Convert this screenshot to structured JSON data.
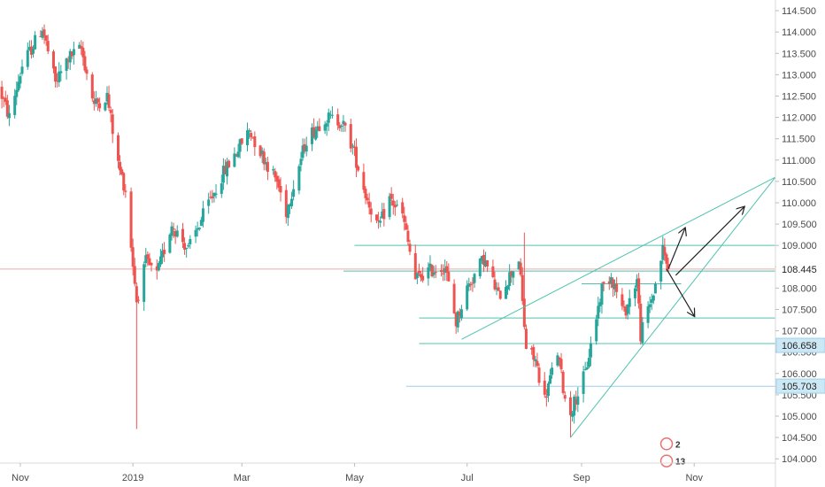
{
  "chart_data": {
    "type": "candlestick",
    "symbol": "",
    "title": "",
    "xlabel": "",
    "ylabel": "",
    "ylim": [
      103.9,
      114.75
    ],
    "grid": false,
    "x_ticks": [
      "Nov",
      "2019",
      "Mar",
      "May",
      "Jul",
      "Sep",
      "Nov"
    ],
    "x_tick_dates": [
      "2018-11-01",
      "2019-01-01",
      "2019-03-01",
      "2019-05-01",
      "2019-07-01",
      "2019-09-01",
      "2019-11-01"
    ],
    "x_range": [
      "2018-10-21",
      "2019-12-15"
    ],
    "y_ticks": [
      114.5,
      114.0,
      113.5,
      113.0,
      112.5,
      112.0,
      111.5,
      111.0,
      110.5,
      110.0,
      109.5,
      109.0,
      108.5,
      108.0,
      107.5,
      107.0,
      106.5,
      106.0,
      105.5,
      105.0,
      104.5,
      104.0
    ],
    "y_tick_labels": [
      "114.500",
      "114.000",
      "113.500",
      "113.000",
      "112.500",
      "112.000",
      "111.500",
      "111.000",
      "110.500",
      "110.000",
      "109.500",
      "109.000",
      "108.500",
      "108.000",
      "107.500",
      "107.000",
      "106.500",
      "106.000",
      "105.500",
      "105.000",
      "104.500",
      "104.000"
    ],
    "colors": {
      "up": "#26a69a",
      "down": "#ef5350",
      "line": "#4fc3b0",
      "blue_line": "#9ccfef",
      "last_price_line": "#f4a6a6",
      "axis_text": "#4a4a4a",
      "arrow": "#222222"
    },
    "anchors": [
      {
        "date": "2018-10-22",
        "close": 112.5
      },
      {
        "date": "2018-10-26",
        "close": 112.0
      },
      {
        "date": "2018-11-02",
        "close": 113.2
      },
      {
        "date": "2018-11-13",
        "close": 114.1
      },
      {
        "date": "2018-11-20",
        "close": 112.8
      },
      {
        "date": "2018-11-27",
        "close": 113.4
      },
      {
        "date": "2018-12-04",
        "close": 113.6
      },
      {
        "date": "2018-12-11",
        "close": 112.3
      },
      {
        "date": "2018-12-18",
        "close": 112.5
      },
      {
        "date": "2018-12-24",
        "close": 110.9
      },
      {
        "date": "2018-12-28",
        "close": 110.3
      },
      {
        "date": "2019-01-03",
        "close": 107.7
      },
      {
        "date": "2019-01-08",
        "close": 108.6
      },
      {
        "date": "2019-01-14",
        "close": 108.3
      },
      {
        "date": "2019-01-22",
        "close": 109.5
      },
      {
        "date": "2019-01-31",
        "close": 108.9
      },
      {
        "date": "2019-02-08",
        "close": 109.7
      },
      {
        "date": "2019-02-19",
        "close": 110.7
      },
      {
        "date": "2019-03-05",
        "close": 111.7
      },
      {
        "date": "2019-03-11",
        "close": 111.2
      },
      {
        "date": "2019-03-20",
        "close": 110.5
      },
      {
        "date": "2019-03-25",
        "close": 109.8
      },
      {
        "date": "2019-04-05",
        "close": 111.5
      },
      {
        "date": "2019-04-15",
        "close": 112.0
      },
      {
        "date": "2019-04-24",
        "close": 111.9
      },
      {
        "date": "2019-04-30",
        "close": 111.3
      },
      {
        "date": "2019-05-07",
        "close": 110.2
      },
      {
        "date": "2019-05-14",
        "close": 109.4
      },
      {
        "date": "2019-05-20",
        "close": 110.1
      },
      {
        "date": "2019-05-27",
        "close": 109.7
      },
      {
        "date": "2019-06-03",
        "close": 108.2
      },
      {
        "date": "2019-06-10",
        "close": 108.4
      },
      {
        "date": "2019-06-19",
        "close": 108.5
      },
      {
        "date": "2019-06-25",
        "close": 107.2
      },
      {
        "date": "2019-07-01",
        "close": 108.0
      },
      {
        "date": "2019-07-10",
        "close": 108.7
      },
      {
        "date": "2019-07-18",
        "close": 107.8
      },
      {
        "date": "2019-07-29",
        "close": 108.7
      },
      {
        "date": "2019-08-02",
        "close": 106.6
      },
      {
        "date": "2019-08-07",
        "close": 106.3
      },
      {
        "date": "2019-08-12",
        "close": 105.4
      },
      {
        "date": "2019-08-19",
        "close": 106.5
      },
      {
        "date": "2019-08-23",
        "close": 105.4
      },
      {
        "date": "2019-08-26",
        "close": 105.1
      },
      {
        "date": "2019-09-03",
        "close": 106.0
      },
      {
        "date": "2019-09-12",
        "close": 108.0
      },
      {
        "date": "2019-09-17",
        "close": 108.3
      },
      {
        "date": "2019-09-24",
        "close": 107.4
      },
      {
        "date": "2019-10-01",
        "close": 108.2
      },
      {
        "date": "2019-10-03",
        "close": 106.9
      },
      {
        "date": "2019-10-10",
        "close": 107.9
      },
      {
        "date": "2019-10-15",
        "close": 108.9
      },
      {
        "date": "2019-10-18",
        "close": 108.45
      }
    ],
    "extreme_wicks": [
      {
        "date": "2019-01-03",
        "low": 104.7
      },
      {
        "date": "2019-08-26",
        "low": 104.5
      },
      {
        "date": "2019-08-01",
        "high": 109.3
      }
    ],
    "horizontal_lines": [
      {
        "price": 109.0,
        "from": "2019-05-01",
        "to": "2019-12-15"
      },
      {
        "price": 108.4,
        "from": "2019-04-25",
        "to": "2019-12-15"
      },
      {
        "price": 108.1,
        "from": "2019-09-01",
        "to": "2019-10-25"
      },
      {
        "price": 107.3,
        "from": "2019-06-05",
        "to": "2019-12-15"
      },
      {
        "price": 106.7,
        "from": "2019-06-05",
        "to": "2019-12-15"
      },
      {
        "price": 105.7,
        "from": "2019-05-29",
        "to": "2019-12-15",
        "color": "blue"
      }
    ],
    "trend_lines": [
      {
        "from_date": "2019-06-28",
        "from_price": 106.8,
        "to_date": "2019-12-15",
        "to_price": 110.6
      },
      {
        "from_date": "2019-08-26",
        "from_price": 104.5,
        "to_date": "2019-12-15",
        "to_price": 110.6
      }
    ],
    "arrows": [
      {
        "from_date": "2019-10-18",
        "from_price": 108.45,
        "to_date": "2019-10-27",
        "to_price": 109.4
      },
      {
        "from_date": "2019-10-22",
        "from_price": 108.3,
        "to_date": "2019-11-28",
        "to_price": 109.9
      },
      {
        "from_date": "2019-10-17",
        "from_price": 108.45,
        "to_date": "2019-11-01",
        "to_price": 107.35
      }
    ],
    "price_labels": [
      {
        "price": 108.445,
        "text": "108.445",
        "style": "plain"
      },
      {
        "price": 106.658,
        "text": "106.658",
        "style": "box"
      },
      {
        "price": 105.703,
        "text": "105.703",
        "style": "box"
      }
    ],
    "event_badges": [
      {
        "date": "2019-10-18",
        "price": 104.35,
        "text": "2"
      },
      {
        "date": "2019-10-18",
        "price": 103.95,
        "text": "13"
      }
    ]
  }
}
